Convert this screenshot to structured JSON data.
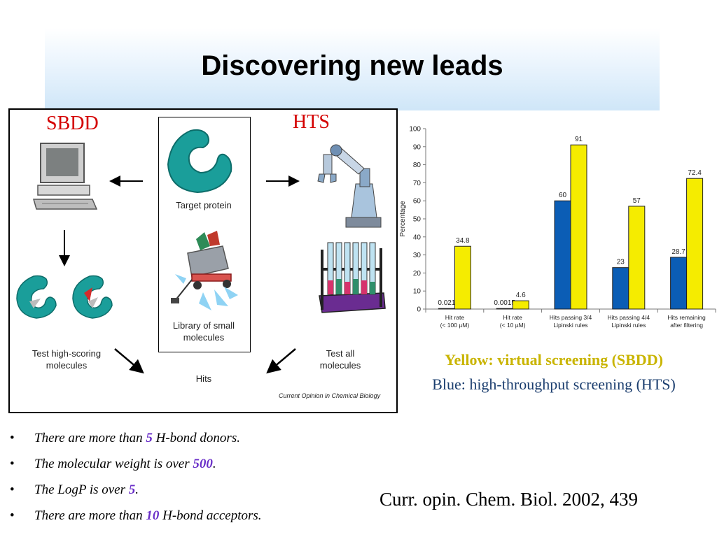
{
  "slide": {
    "title": "Discovering new leads"
  },
  "figure": {
    "label_left": "SBDD",
    "label_right": "HTS",
    "target_protein": "Target protein",
    "library_line1": "Library of small",
    "library_line2": "molecules",
    "test_high_line1": "Test high-scoring",
    "test_high_line2": "molecules",
    "test_all_line1": "Test all",
    "test_all_line2": "molecules",
    "hits": "Hits",
    "credit": "Current Opinion in Chemical Biology"
  },
  "chart_data": {
    "type": "bar",
    "ylabel": "Percentage",
    "ylim": [
      0,
      100
    ],
    "yticks": [
      "0",
      "10",
      "20",
      "30",
      "40",
      "50",
      "60",
      "70",
      "80",
      "90",
      "100"
    ],
    "categories": [
      [
        "Hit rate",
        "(< 100 µM)"
      ],
      [
        "Hit rate",
        "(< 10 µM)"
      ],
      [
        "Hits passing 3/4",
        "Lipinski rules"
      ],
      [
        "Hits passing 4/4",
        "Lipinski rules"
      ],
      [
        "Hits remaining",
        "after filtering"
      ]
    ],
    "series": [
      {
        "color": "#0b5db5",
        "values": [
          0.021,
          0.0015,
          60,
          23,
          28.7
        ],
        "labels": [
          "0.021",
          "0.0015",
          "60",
          "23",
          "28.7"
        ]
      },
      {
        "color": "#f5ec00",
        "values": [
          34.8,
          4.6,
          91,
          57,
          72.4
        ],
        "labels": [
          "34.8",
          "4.6",
          "91",
          "57",
          "72.4"
        ]
      }
    ]
  },
  "legend": {
    "yellow": "Yellow: virtual screening (SBDD)",
    "blue": "Blue: high-throughput screening (HTS)"
  },
  "bullets": [
    {
      "before": "There are more than ",
      "num": "5",
      "after": " H-bond donors."
    },
    {
      "before": "The molecular weight is over ",
      "num": "500",
      "after": "."
    },
    {
      "before": "The LogP is over ",
      "num": "5",
      "after": "."
    },
    {
      "before": "There are more than ",
      "num": "10",
      "after": " H-bond acceptors."
    }
  ],
  "citation": "Curr. opin. Chem. Biol. 2002, 439"
}
